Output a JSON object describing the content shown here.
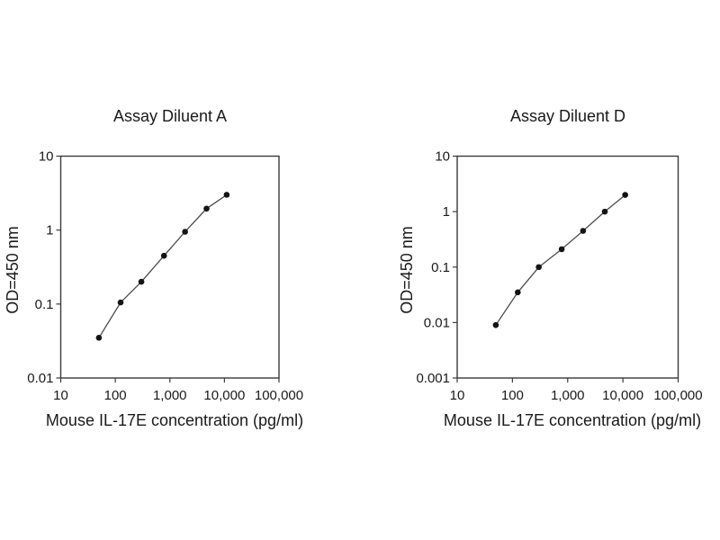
{
  "figure": {
    "background": "#ffffff",
    "text_color": "#1a1a1a",
    "axis_color": "#3a3a3a"
  },
  "chart_data": [
    {
      "type": "line",
      "title": "Assay Diluent A",
      "xlabel": "Mouse IL-17E concentration (pg/ml)",
      "ylabel": "OD=450 nm",
      "x_scale": "log",
      "y_scale": "log",
      "xlim": [
        10,
        100000
      ],
      "ylim": [
        0.01,
        10
      ],
      "x_tick_values": [
        10,
        100,
        1000,
        10000,
        100000
      ],
      "x_tick_labels": [
        "10",
        "100",
        "1,000",
        "10,000",
        "100,000"
      ],
      "y_tick_values": [
        0.01,
        0.1,
        1,
        10
      ],
      "y_tick_labels": [
        "0.01",
        "0.1",
        "1",
        "10"
      ],
      "grid": false,
      "legend": null,
      "x": [
        50,
        125,
        300,
        780,
        1900,
        4700,
        11000
      ],
      "y": [
        0.035,
        0.105,
        0.2,
        0.45,
        0.95,
        1.95,
        3.0
      ],
      "marker_color": "#141414",
      "line_color": "#4a4a4a"
    },
    {
      "type": "line",
      "title": "Assay Diluent D",
      "xlabel": "Mouse IL-17E concentration (pg/ml)",
      "ylabel": "OD=450 nm",
      "x_scale": "log",
      "y_scale": "log",
      "xlim": [
        10,
        100000
      ],
      "ylim": [
        0.001,
        10
      ],
      "x_tick_values": [
        10,
        100,
        1000,
        10000,
        100000
      ],
      "x_tick_labels": [
        "10",
        "100",
        "1,000",
        "10,000",
        "100,000"
      ],
      "y_tick_values": [
        0.001,
        0.01,
        0.1,
        1,
        10
      ],
      "y_tick_labels": [
        "0.001",
        "0.01",
        "0.1",
        "1",
        "10"
      ],
      "grid": false,
      "legend": null,
      "x": [
        50,
        125,
        300,
        780,
        1900,
        4700,
        11000
      ],
      "y": [
        0.009,
        0.035,
        0.1,
        0.21,
        0.45,
        1.0,
        2.0
      ],
      "marker_color": "#141414",
      "line_color": "#4a4a4a"
    }
  ]
}
